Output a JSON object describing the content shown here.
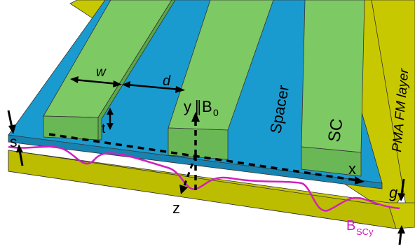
{
  "labels": {
    "w": "w",
    "d": "d",
    "t": "t",
    "y_axis_main": "y",
    "parallel_symbol": "∥",
    "b0_main": "B",
    "b0_sub": "0",
    "spacer": "Spacer",
    "sc": "SC",
    "pma_layer": "PMA FM layer",
    "x_axis": "x",
    "s": "s",
    "g": "g",
    "z_axis": "z",
    "bscy_main": "B",
    "bscy_sub": "SCy"
  },
  "colors": {
    "green_strip": "#7dc964",
    "green_strip_front": "#6ab855",
    "blue_spacer": "#1a9bcf",
    "yellow_layer": "#c8c800",
    "magenta_field": "#d020c0",
    "arrow": "#000000"
  }
}
